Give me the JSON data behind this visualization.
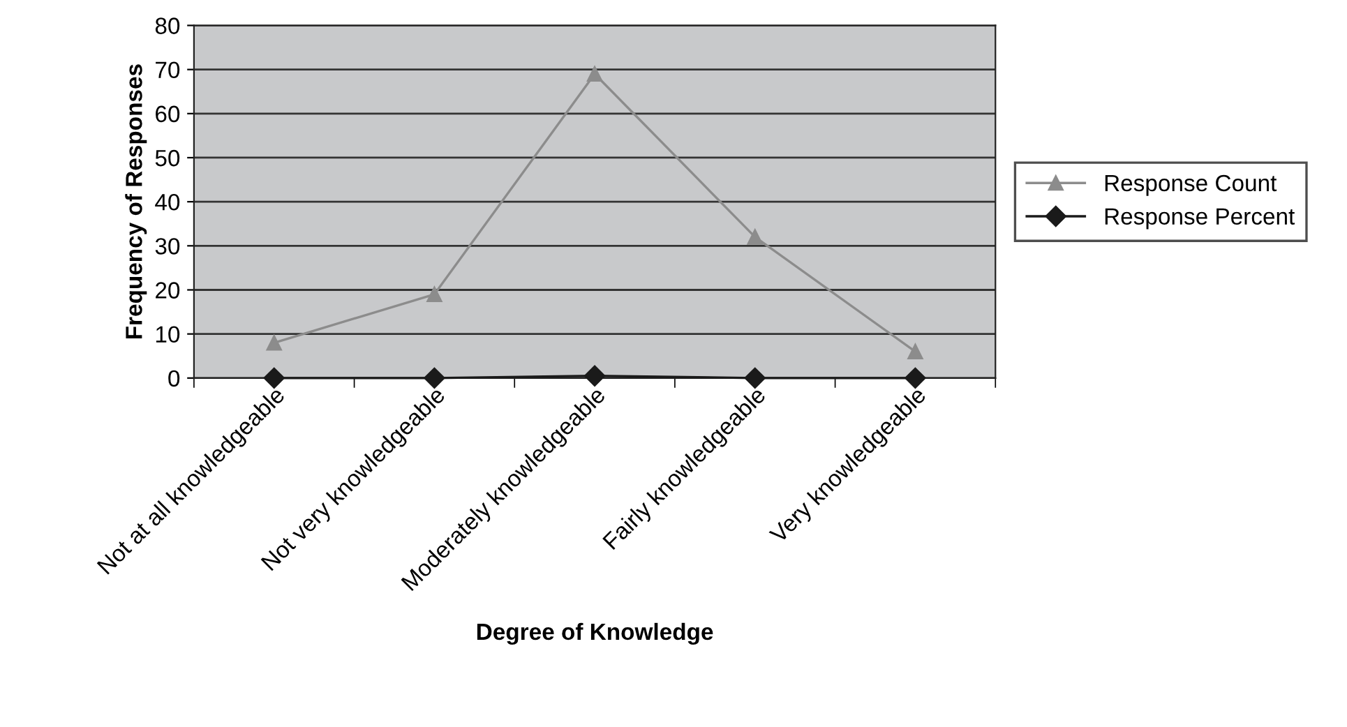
{
  "chart_data": {
    "type": "line",
    "xlabel": "Degree of Knowledge",
    "ylabel": "Frequency of Responses",
    "categories": [
      "Not at all knowledgeable",
      "Not very knowledgeable",
      "Moderately knowledgeable",
      "Fairly knowledgeable",
      "Very knowledgeable"
    ],
    "series": [
      {
        "name": "Response Count",
        "color": "#8c8c8c",
        "marker": "triangle",
        "values": [
          8,
          19,
          69,
          32,
          6
        ]
      },
      {
        "name": "Response Percent",
        "color": "#1a1a1a",
        "marker": "diamond",
        "values": [
          0,
          0,
          0.5,
          0,
          0
        ]
      }
    ],
    "ylim": [
      0,
      80
    ],
    "yticks": [
      0,
      10,
      20,
      30,
      40,
      50,
      60,
      70,
      80
    ],
    "grid": "y",
    "legend": "right"
  }
}
